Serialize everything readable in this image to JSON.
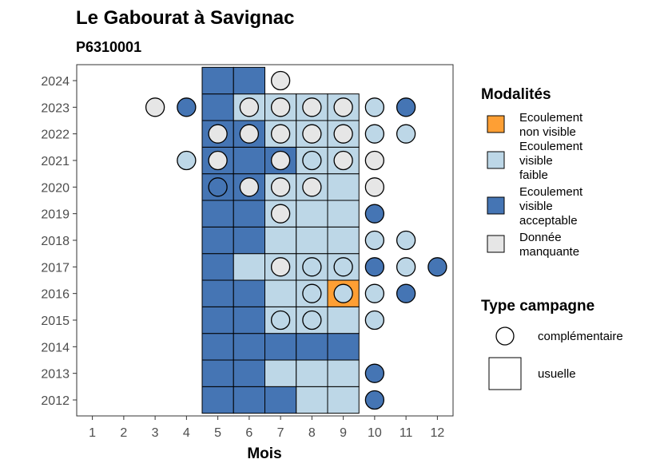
{
  "chart_data": {
    "type": "heatmap",
    "title": "Le Gabourat à Savignac",
    "subtitle": "P6310001",
    "xlabel": "Mois",
    "ylabel": "",
    "x_ticks": [
      1,
      2,
      3,
      4,
      5,
      6,
      7,
      8,
      9,
      10,
      11,
      12
    ],
    "y_ticks": [
      2012,
      2013,
      2014,
      2015,
      2016,
      2017,
      2018,
      2019,
      2020,
      2021,
      2022,
      2023,
      2024
    ],
    "xlim": [
      0.5,
      12.5
    ],
    "ylim": [
      2011.4,
      2024.6
    ],
    "grid": false,
    "legend_position": "right",
    "categories": {
      "non_visible": {
        "label": "Ecoulement non visible",
        "color": "#fe9f34"
      },
      "faible": {
        "label": "Ecoulement visible faible",
        "color": "#bdd7e7"
      },
      "acceptable": {
        "label": "Ecoulement visible acceptable",
        "color": "#4575b4"
      },
      "manquante": {
        "label": "Donnée manquante",
        "color": "#e6e6e6"
      }
    },
    "legend_modalites": {
      "title": "Modalités",
      "entries": [
        {
          "key": "non_visible",
          "lines": [
            "Ecoulement",
            "non visible"
          ]
        },
        {
          "key": "faible",
          "lines": [
            "Ecoulement",
            "visible",
            "faible"
          ]
        },
        {
          "key": "acceptable",
          "lines": [
            "Ecoulement",
            "visible",
            "acceptable"
          ]
        },
        {
          "key": "manquante",
          "lines": [
            "Donnée",
            "manquante"
          ]
        }
      ]
    },
    "legend_campagne": {
      "title": "Type campagne",
      "entries": [
        {
          "shape": "circle",
          "label": "complémentaire"
        },
        {
          "shape": "square",
          "label": "usuelle"
        }
      ]
    },
    "usuelle": [
      {
        "year": 2012,
        "values": {
          "5": "acceptable",
          "6": "acceptable",
          "7": "acceptable",
          "8": "faible",
          "9": "faible"
        }
      },
      {
        "year": 2013,
        "values": {
          "5": "acceptable",
          "6": "acceptable",
          "7": "faible",
          "8": "faible",
          "9": "faible"
        }
      },
      {
        "year": 2014,
        "values": {
          "5": "acceptable",
          "6": "acceptable",
          "7": "acceptable",
          "8": "acceptable",
          "9": "acceptable"
        }
      },
      {
        "year": 2015,
        "values": {
          "5": "acceptable",
          "6": "acceptable",
          "7": "faible",
          "8": "faible",
          "9": "faible"
        }
      },
      {
        "year": 2016,
        "values": {
          "5": "acceptable",
          "6": "acceptable",
          "7": "faible",
          "8": "faible",
          "9": "non_visible"
        }
      },
      {
        "year": 2017,
        "values": {
          "5": "acceptable",
          "6": "faible",
          "7": "faible",
          "8": "faible",
          "9": "faible"
        }
      },
      {
        "year": 2018,
        "values": {
          "5": "acceptable",
          "6": "acceptable",
          "7": "faible",
          "8": "faible",
          "9": "faible"
        }
      },
      {
        "year": 2019,
        "values": {
          "5": "acceptable",
          "6": "acceptable",
          "7": "faible",
          "8": "faible",
          "9": "faible"
        }
      },
      {
        "year": 2020,
        "values": {
          "5": "acceptable",
          "6": "acceptable",
          "7": "faible",
          "8": "faible",
          "9": "faible"
        }
      },
      {
        "year": 2021,
        "values": {
          "5": "acceptable",
          "6": "acceptable",
          "7": "acceptable",
          "8": "faible",
          "9": "faible"
        }
      },
      {
        "year": 2022,
        "values": {
          "5": "acceptable",
          "6": "acceptable",
          "7": "faible",
          "8": "faible",
          "9": "faible"
        }
      },
      {
        "year": 2023,
        "values": {
          "5": "acceptable",
          "6": "faible",
          "7": "faible",
          "8": "faible",
          "9": "faible"
        }
      },
      {
        "year": 2024,
        "values": {
          "5": "acceptable",
          "6": "acceptable"
        }
      }
    ],
    "complementaire": [
      {
        "year": 2012,
        "values": {
          "10": "acceptable"
        }
      },
      {
        "year": 2013,
        "values": {
          "10": "acceptable"
        }
      },
      {
        "year": 2015,
        "values": {
          "7": "faible",
          "8": "faible",
          "10": "faible"
        }
      },
      {
        "year": 2016,
        "values": {
          "8": "faible",
          "9": "faible",
          "10": "faible",
          "11": "acceptable"
        }
      },
      {
        "year": 2017,
        "values": {
          "7": "manquante",
          "8": "faible",
          "9": "faible",
          "10": "acceptable",
          "11": "faible",
          "12": "acceptable"
        }
      },
      {
        "year": 2018,
        "values": {
          "10": "faible",
          "11": "faible"
        }
      },
      {
        "year": 2019,
        "values": {
          "7": "manquante",
          "10": "acceptable"
        }
      },
      {
        "year": 2020,
        "values": {
          "5": "acceptable",
          "6": "manquante",
          "7": "manquante",
          "8": "manquante",
          "10": "manquante"
        }
      },
      {
        "year": 2021,
        "values": {
          "4": "faible",
          "5": "manquante",
          "7": "manquante",
          "8": "faible",
          "9": "manquante",
          "10": "manquante"
        }
      },
      {
        "year": 2022,
        "values": {
          "5": "manquante",
          "6": "manquante",
          "7": "manquante",
          "8": "manquante",
          "9": "manquante",
          "10": "faible",
          "11": "faible"
        }
      },
      {
        "year": 2023,
        "values": {
          "3": "manquante",
          "4": "acceptable",
          "6": "manquante",
          "7": "manquante",
          "8": "manquante",
          "9": "manquante",
          "10": "faible",
          "11": "acceptable"
        }
      },
      {
        "year": 2024,
        "values": {
          "7": "manquante"
        }
      }
    ]
  }
}
